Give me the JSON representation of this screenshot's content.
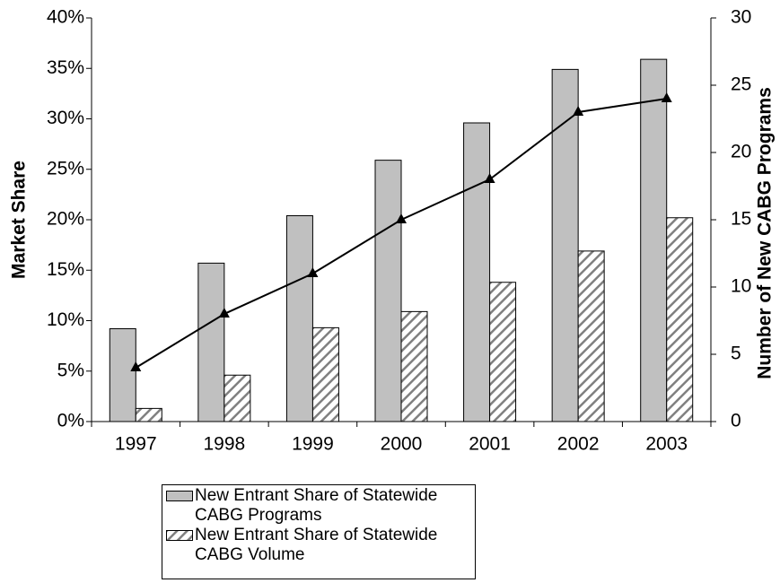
{
  "chart_data": {
    "type": "bar",
    "categories": [
      "1997",
      "1998",
      "1999",
      "2000",
      "2001",
      "2002",
      "2003"
    ],
    "series": [
      {
        "name": "New Entrant Share of Statewide CABG Programs",
        "type": "bar",
        "color": "#c0c0c0",
        "values": [
          9.2,
          15.7,
          20.4,
          25.9,
          29.6,
          34.9,
          35.9
        ]
      },
      {
        "name": "New Entrant Share of Statewide CABG Volume",
        "type": "bar",
        "color": "#808080",
        "hatch": true,
        "values": [
          1.3,
          4.6,
          9.3,
          10.9,
          13.8,
          16.9,
          20.2
        ]
      },
      {
        "type": "line",
        "axis": "y2",
        "color": "#000000",
        "marker": "triangle",
        "values": [
          4,
          8,
          11,
          15,
          18,
          23,
          24
        ]
      }
    ],
    "ylabel": "Market Share",
    "y2label": "Number of New CABG Programs",
    "ylim": [
      0,
      40
    ],
    "yticks": [
      {
        "value": 0,
        "label": "0%"
      },
      {
        "value": 5,
        "label": "5%"
      },
      {
        "value": 10,
        "label": "10%"
      },
      {
        "value": 15,
        "label": "15%"
      },
      {
        "value": 20,
        "label": "20%"
      },
      {
        "value": 25,
        "label": "25%"
      },
      {
        "value": 30,
        "label": "30%"
      },
      {
        "value": 35,
        "label": "35%"
      },
      {
        "value": 40,
        "label": "40%"
      }
    ],
    "y2lim": [
      0,
      30
    ],
    "y2ticks": [
      0,
      5,
      10,
      15,
      20,
      25,
      30
    ],
    "legend": "bottom"
  }
}
